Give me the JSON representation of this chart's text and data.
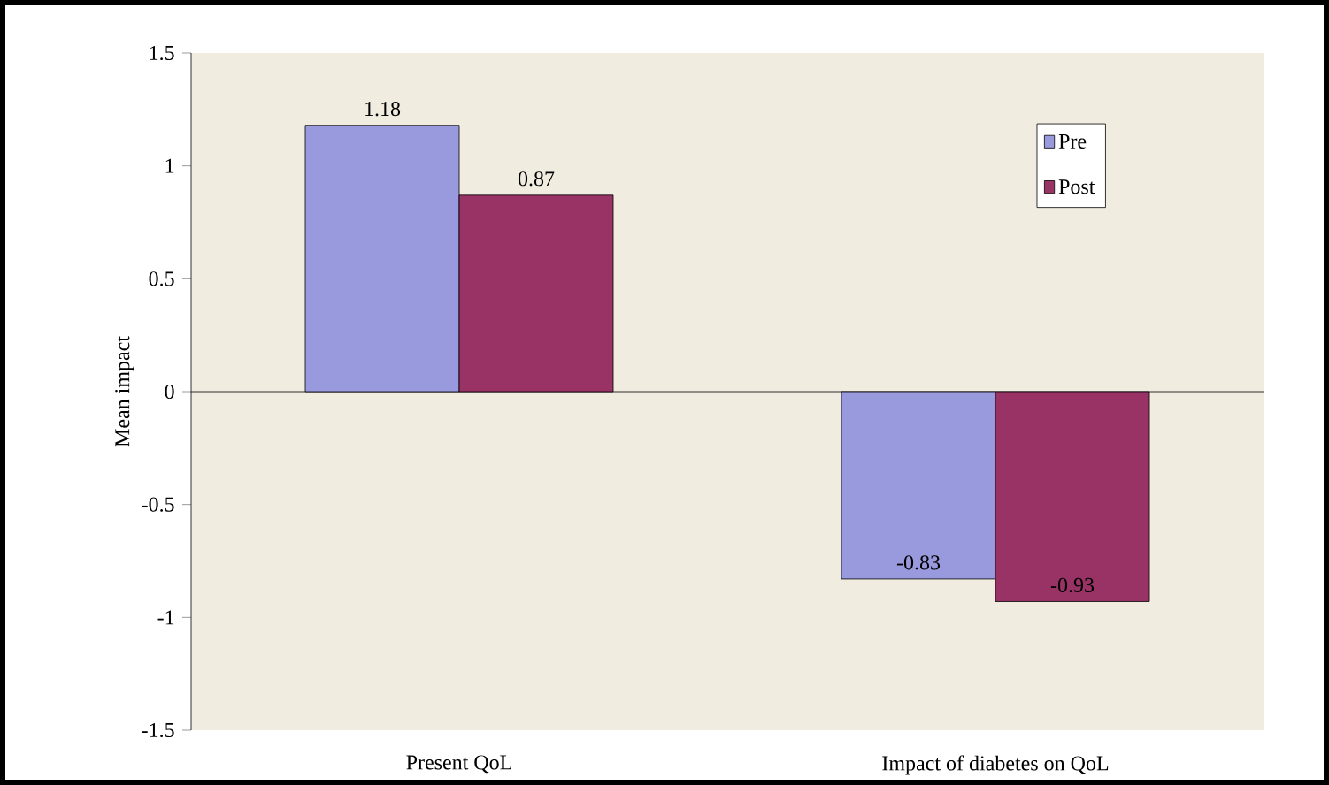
{
  "chart_data": {
    "type": "bar",
    "ylabel": "Mean impact",
    "categories": [
      "Present QoL",
      "Impact of diabetes on QoL"
    ],
    "series": [
      {
        "name": "Pre",
        "color": "#9999dd",
        "values": [
          1.18,
          -0.83
        ]
      },
      {
        "name": "Post",
        "color": "#993366",
        "values": [
          0.87,
          -0.93
        ]
      }
    ],
    "ylim": [
      -1.5,
      1.5
    ],
    "yticks": [
      -1.5,
      -1,
      -0.5,
      0,
      0.5,
      1,
      1.5
    ],
    "data_labels": true,
    "legend": "top right"
  }
}
